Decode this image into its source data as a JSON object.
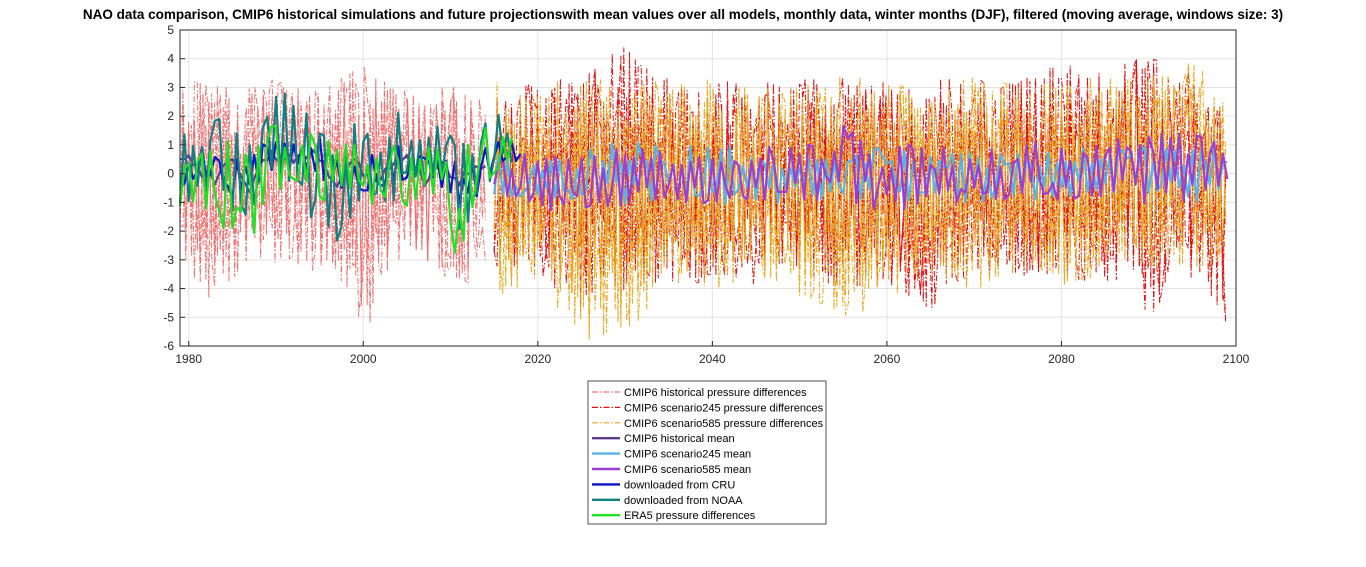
{
  "chart_data": {
    "type": "line",
    "title": "NAO data comparison, CMIP6 historical simulations and future projectionswith mean values over all models, monthly data, winter months (DJF), filtered (moving average, windows size: 3)",
    "xlabel": "",
    "ylabel": "",
    "xlim": [
      1979,
      2100
    ],
    "ylim": [
      -6,
      5
    ],
    "xticks": [
      1980,
      2000,
      2020,
      2040,
      2060,
      2080,
      2100
    ],
    "yticks": [
      5,
      4,
      3,
      2,
      1,
      0,
      -1,
      -2,
      -3,
      -4,
      -5,
      -6
    ],
    "grid": true,
    "legend_position": "below",
    "series": [
      {
        "name": "CMIP6 historical pressure differences",
        "color": "#f07070",
        "style": "dashdot",
        "width": 1,
        "x": [
          1979,
          1982,
          1985,
          1988,
          1991,
          1994,
          1997,
          2000,
          2003,
          2006,
          2009,
          2012,
          2014
        ],
        "max": [
          3.4,
          3.2,
          3.1,
          3.0,
          3.5,
          3.1,
          3.2,
          4.1,
          3.1,
          3.0,
          3.2,
          3.1,
          2.8
        ],
        "min": [
          -3.2,
          -4.5,
          -3.7,
          -3.1,
          -3.2,
          -3.4,
          -3.6,
          -5.9,
          -3.2,
          -3.0,
          -3.6,
          -3.9,
          -3.1
        ]
      },
      {
        "name": "CMIP6 scenario245 pressure differences",
        "color": "#e01010",
        "style": "dashdot",
        "width": 1,
        "x": [
          2015,
          2020,
          2025,
          2030,
          2035,
          2040,
          2045,
          2050,
          2055,
          2060,
          2065,
          2070,
          2075,
          2080,
          2085,
          2090,
          2095,
          2099
        ],
        "max": [
          3.0,
          3.3,
          3.4,
          4.6,
          3.4,
          3.3,
          3.2,
          3.3,
          3.5,
          3.2,
          3.3,
          3.3,
          3.3,
          3.9,
          3.5,
          4.3,
          3.6,
          3.2
        ],
        "min": [
          -3.2,
          -3.5,
          -4.8,
          -4.1,
          -3.9,
          -3.8,
          -3.9,
          -3.8,
          -4.0,
          -3.9,
          -4.8,
          -3.6,
          -3.7,
          -3.8,
          -3.7,
          -5.0,
          -3.8,
          -5.4
        ]
      },
      {
        "name": "CMIP6 scenario585 pressure differences",
        "color": "#e8a820",
        "style": "dashdot",
        "width": 1,
        "x": [
          2015,
          2020,
          2025,
          2030,
          2035,
          2040,
          2045,
          2050,
          2055,
          2060,
          2065,
          2070,
          2075,
          2080,
          2085,
          2090,
          2095,
          2099
        ],
        "max": [
          3.3,
          3.1,
          3.4,
          3.2,
          3.4,
          3.3,
          3.1,
          3.0,
          3.5,
          3.2,
          3.0,
          3.6,
          3.2,
          3.2,
          3.6,
          3.4,
          3.9,
          2.8
        ],
        "min": [
          -4.4,
          -3.7,
          -5.9,
          -5.7,
          -4.0,
          -4.1,
          -4.0,
          -4.3,
          -5.1,
          -4.5,
          -3.8,
          -4.1,
          -3.6,
          -3.9,
          -3.6,
          -3.6,
          -3.4,
          -3.3
        ]
      },
      {
        "name": "CMIP6 historical mean",
        "color": "#5e3c8c",
        "style": "solid",
        "width": 2.2,
        "x": [
          1979,
          1981,
          1983,
          1985,
          1987,
          1989,
          1991,
          1993,
          1995,
          1997,
          1999,
          2001,
          2003,
          2005,
          2007,
          2009,
          2011,
          2013,
          2014
        ],
        "y": [
          0.6,
          0.2,
          -0.3,
          0.4,
          -0.5,
          0.7,
          0.3,
          0.9,
          0.4,
          -0.3,
          0.5,
          -0.4,
          0.2,
          0.6,
          -0.2,
          0.5,
          -0.3,
          0.4,
          0.1
        ]
      },
      {
        "name": "CMIP6 scenario245 mean",
        "color": "#5ab4e0",
        "style": "solid",
        "width": 2.2,
        "x": [
          2015,
          2020,
          2025,
          2030,
          2035,
          2040,
          2045,
          2050,
          2055,
          2060,
          2065,
          2070,
          2075,
          2080,
          2085,
          2090,
          2095,
          2099
        ],
        "max": [
          0.7,
          0.6,
          0.8,
          1.2,
          1.0,
          1.1,
          0.8,
          0.7,
          1.0,
          0.9,
          0.9,
          0.8,
          0.9,
          1.0,
          1.0,
          1.2,
          1.0,
          0.9
        ],
        "min": [
          -0.8,
          -0.9,
          -1.0,
          -1.1,
          -0.9,
          -1.0,
          -1.2,
          -0.9,
          -0.8,
          -1.0,
          -1.0,
          -1.0,
          -0.9,
          -1.0,
          -0.9,
          -1.0,
          -1.0,
          -0.9
        ]
      },
      {
        "name": "CMIP6 scenario585 mean",
        "color": "#9b3fd4",
        "style": "solid",
        "width": 2.2,
        "x": [
          2015,
          2020,
          2025,
          2030,
          2035,
          2040,
          2045,
          2050,
          2055,
          2060,
          2065,
          2070,
          2075,
          2080,
          2085,
          2090,
          2095,
          2099
        ],
        "max": [
          0.9,
          0.8,
          0.9,
          0.9,
          0.8,
          0.7,
          0.9,
          1.0,
          1.7,
          1.1,
          1.0,
          0.8,
          1.0,
          1.2,
          1.2,
          1.4,
          1.4,
          1.2
        ],
        "min": [
          -0.9,
          -1.3,
          -1.2,
          -1.1,
          -1.0,
          -1.1,
          -1.0,
          -0.9,
          -1.0,
          -1.4,
          -1.3,
          -0.9,
          -1.0,
          -0.9,
          -1.0,
          -1.2,
          -1.0,
          -0.6
        ]
      },
      {
        "name": "downloaded from CRU",
        "color": "#0a14c8",
        "style": "solid",
        "width": 2.2,
        "x": [
          1979,
          1981,
          1983,
          1985,
          1987,
          1989,
          1991,
          1993,
          1995,
          1997,
          1999,
          2001,
          2003,
          2005,
          2007,
          2009,
          2011,
          2013,
          2015,
          2017,
          2018
        ],
        "max": [
          0.6,
          0.9,
          1.1,
          1.0,
          0.7,
          1.2,
          1.1,
          1.0,
          1.4,
          0.9,
          0.8,
          0.7,
          1.0,
          1.1,
          0.8,
          0.9,
          0.4,
          0.5,
          1.3,
          1.2,
          1.1
        ],
        "min": [
          -0.6,
          -0.3,
          -0.7,
          -0.9,
          -0.8,
          -0.1,
          0.0,
          0.2,
          -0.2,
          -0.6,
          -0.7,
          -0.9,
          -0.4,
          -0.6,
          -0.2,
          -0.5,
          -1.6,
          -1.0,
          0.2,
          0.3,
          0.5
        ]
      },
      {
        "name": "downloaded from NOAA",
        "color": "#128080",
        "style": "solid",
        "width": 2.2,
        "x": [
          1979,
          1981,
          1983,
          1985,
          1987,
          1989,
          1991,
          1993,
          1995,
          1997,
          1999,
          2001,
          2003,
          2005,
          2007,
          2009,
          2011,
          2013,
          2015,
          2017
        ],
        "max": [
          1.3,
          1.6,
          2.1,
          1.9,
          1.3,
          3.0,
          2.8,
          2.3,
          2.9,
          1.4,
          1.8,
          1.5,
          2.1,
          2.2,
          1.8,
          1.7,
          1.3,
          2.2,
          2.9,
          2.1
        ],
        "min": [
          -1.1,
          -1.2,
          -1.1,
          -2.4,
          -1.3,
          -1.2,
          -0.6,
          -0.7,
          -2.4,
          -2.6,
          -1.2,
          -0.8,
          -1.3,
          -1.1,
          -1.2,
          -0.4,
          -3.5,
          -1.6,
          -0.4,
          -0.3
        ]
      },
      {
        "name": "ERA5 pressure differences",
        "color": "#22e022",
        "style": "solid",
        "width": 2.2,
        "x": [
          1979,
          1981,
          1983,
          1985,
          1987,
          1989,
          1991,
          1993,
          1995,
          1997,
          1999,
          2001,
          2003,
          2005,
          2007,
          2009,
          2011,
          2013,
          2015,
          2017
        ],
        "max": [
          0.7,
          1.0,
          1.3,
          1.6,
          1.1,
          2.0,
          1.6,
          1.2,
          2.2,
          1.2,
          1.1,
          1.0,
          1.1,
          1.3,
          0.9,
          1.1,
          0.6,
          1.7,
          1.8,
          1.3
        ],
        "min": [
          -1.8,
          -1.5,
          -1.4,
          -2.4,
          -2.5,
          -1.0,
          -0.4,
          -0.3,
          -1.3,
          -0.6,
          -0.8,
          -1.1,
          -0.9,
          -1.3,
          -0.8,
          -0.7,
          -4.3,
          -1.1,
          -0.4,
          0.1
        ]
      }
    ]
  }
}
